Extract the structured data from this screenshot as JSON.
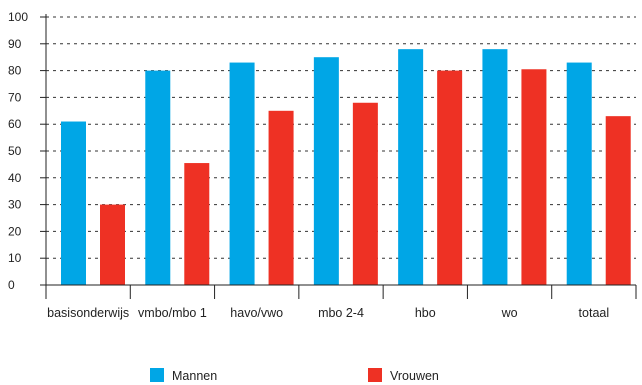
{
  "chart_data": {
    "type": "bar",
    "categories": [
      "basisonderwijs",
      "vmbo/mbo 1",
      "havo/vwo",
      "mbo 2-4",
      "hbo",
      "wo",
      "totaal"
    ],
    "series": [
      {
        "name": "Mannen",
        "values": [
          61,
          80,
          83,
          85,
          88,
          88,
          83
        ],
        "color": "#00a6e6"
      },
      {
        "name": "Vrouwen",
        "values": [
          30,
          45.5,
          65,
          68,
          80,
          80.5,
          63
        ],
        "color": "#ee3124"
      }
    ],
    "y_ticks": [
      "0",
      "10",
      "20",
      "30",
      "40",
      "50",
      "60",
      "70",
      "80",
      "90",
      "100"
    ],
    "ylim": [
      0,
      100
    ],
    "grid": "dashed horizontal",
    "legend_position": "bottom"
  }
}
